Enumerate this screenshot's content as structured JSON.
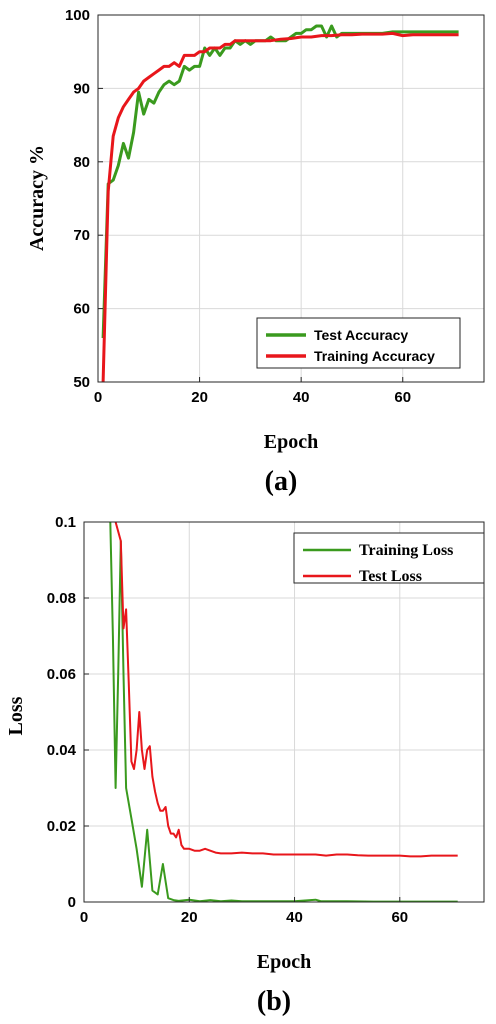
{
  "chart_data": [
    {
      "type": "line",
      "panel_label": "(a)",
      "xlabel": "Epoch",
      "ylabel": "Accuracy %",
      "xlim": [
        0,
        76
      ],
      "ylim": [
        50,
        100
      ],
      "xticks": [
        0,
        20,
        40,
        60
      ],
      "yticks": [
        50,
        60,
        70,
        80,
        90,
        100
      ],
      "grid": true,
      "legend_position": "bottom-right",
      "series": [
        {
          "name": "Test Accuracy",
          "color": "#3a9a1e",
          "x": [
            1,
            2,
            3,
            4,
            5,
            6,
            7,
            8,
            9,
            10,
            11,
            12,
            13,
            14,
            15,
            16,
            17,
            18,
            19,
            20,
            21,
            22,
            23,
            24,
            25,
            26,
            27,
            28,
            29,
            30,
            31,
            32,
            33,
            34,
            35,
            36,
            37,
            38,
            39,
            40,
            41,
            42,
            43,
            44,
            45,
            46,
            47,
            48,
            49,
            50,
            52,
            54,
            56,
            58,
            60,
            62,
            64,
            66,
            68,
            70,
            71
          ],
          "y": [
            56,
            77,
            77.5,
            79.5,
            82.5,
            80.5,
            84,
            89.5,
            86.5,
            88.5,
            88,
            89.5,
            90.5,
            91,
            90.5,
            91,
            93,
            92.5,
            93,
            93,
            95.5,
            94.5,
            95.5,
            94.5,
            95.5,
            95.5,
            96.5,
            96,
            96.5,
            96,
            96.5,
            96.5,
            96.5,
            97,
            96.5,
            96.5,
            96.5,
            97,
            97.5,
            97.5,
            98,
            98,
            98.5,
            98.5,
            97,
            98.5,
            97,
            97.5,
            97.5,
            97.5,
            97.5,
            97.5,
            97.5,
            97.7,
            97.7,
            97.7,
            97.7,
            97.7,
            97.7,
            97.7,
            97.7
          ]
        },
        {
          "name": "Training Accuracy",
          "color": "#e8161b",
          "x": [
            1,
            2,
            3,
            4,
            5,
            6,
            7,
            8,
            9,
            10,
            11,
            12,
            13,
            14,
            15,
            16,
            17,
            18,
            19,
            20,
            21,
            22,
            23,
            24,
            25,
            26,
            27,
            28,
            29,
            30,
            32,
            34,
            36,
            38,
            40,
            42,
            44,
            46,
            48,
            50,
            52,
            54,
            56,
            58,
            60,
            62,
            64,
            66,
            68,
            70,
            71
          ],
          "y": [
            50,
            76,
            83.5,
            86,
            87.5,
            88.5,
            89.5,
            90,
            91,
            91.5,
            92,
            92.5,
            93,
            93,
            93.5,
            93,
            94.5,
            94.5,
            94.5,
            95,
            95,
            95.5,
            95.5,
            95.5,
            96,
            96,
            96.5,
            96.5,
            96.5,
            96.5,
            96.5,
            96.5,
            96.7,
            96.8,
            97,
            97,
            97.2,
            97.2,
            97.3,
            97.3,
            97.4,
            97.4,
            97.4,
            97.5,
            97.2,
            97.3,
            97.3,
            97.3,
            97.3,
            97.3,
            97.3
          ]
        }
      ]
    },
    {
      "type": "line",
      "panel_label": "(b)",
      "xlabel": "Epoch",
      "ylabel": "Loss",
      "xlim": [
        0,
        76
      ],
      "ylim": [
        0,
        0.1
      ],
      "xticks": [
        0,
        20,
        40,
        60
      ],
      "yticks": [
        0,
        0.02,
        0.04,
        0.06,
        0.08,
        0.1
      ],
      "grid": true,
      "legend_position": "top-right",
      "series": [
        {
          "name": "Training Loss",
          "color": "#3a9a1e",
          "x": [
            5,
            5.5,
            6,
            6.5,
            7,
            7.5,
            8,
            9,
            10,
            11,
            12,
            13,
            14,
            15,
            16,
            17,
            18,
            20,
            22,
            24,
            26,
            28,
            30,
            35,
            40,
            44,
            45,
            50,
            55,
            60,
            65,
            70,
            71
          ],
          "y": [
            0.1,
            0.07,
            0.03,
            0.06,
            0.095,
            0.06,
            0.03,
            0.022,
            0.014,
            0.004,
            0.019,
            0.003,
            0.002,
            0.01,
            0.001,
            0.0005,
            0.0003,
            0.0006,
            0.0002,
            0.0005,
            0.0002,
            0.0004,
            0.0002,
            0.0002,
            0.0002,
            0.0006,
            0.0002,
            0.0002,
            0.0001,
            0.0001,
            0.0001,
            0.0001,
            0.0001
          ]
        },
        {
          "name": "Test Loss",
          "color": "#e8161b",
          "x": [
            6,
            7,
            7.5,
            8,
            8.5,
            9,
            9.5,
            10,
            10.5,
            11,
            11.5,
            12,
            12.5,
            13,
            13.5,
            14,
            14.5,
            15,
            15.5,
            16,
            16.5,
            17,
            17.5,
            18,
            18.5,
            19,
            20,
            21,
            22,
            23,
            24,
            25,
            26,
            28,
            30,
            32,
            34,
            36,
            38,
            40,
            42,
            44,
            46,
            48,
            50,
            52,
            54,
            56,
            58,
            60,
            62,
            64,
            66,
            68,
            70,
            71
          ],
          "y": [
            0.1,
            0.095,
            0.072,
            0.077,
            0.058,
            0.037,
            0.035,
            0.04,
            0.05,
            0.04,
            0.035,
            0.04,
            0.041,
            0.033,
            0.029,
            0.026,
            0.024,
            0.024,
            0.025,
            0.02,
            0.018,
            0.018,
            0.017,
            0.019,
            0.015,
            0.014,
            0.014,
            0.0135,
            0.0135,
            0.014,
            0.0135,
            0.013,
            0.0128,
            0.0128,
            0.013,
            0.0128,
            0.0128,
            0.0125,
            0.0125,
            0.0125,
            0.0125,
            0.0125,
            0.0122,
            0.0125,
            0.0125,
            0.0123,
            0.0122,
            0.0122,
            0.0122,
            0.0122,
            0.012,
            0.012,
            0.0122,
            0.0122,
            0.0122,
            0.0122
          ]
        }
      ]
    }
  ]
}
